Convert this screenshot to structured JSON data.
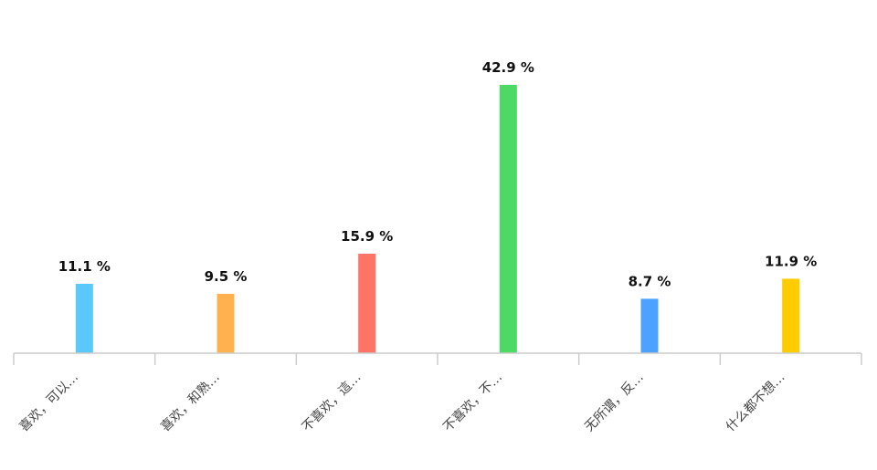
{
  "chart_data": {
    "type": "bar",
    "categories": [
      "喜欢，可以…",
      "喜欢，和熟…",
      "不喜欢，這…",
      "不喜欢，不…",
      "无所谓，反…",
      "什么都不想…"
    ],
    "values": [
      11.1,
      9.5,
      15.9,
      42.9,
      8.7,
      11.9
    ],
    "value_labels": [
      "11.1 %",
      "9.5 %",
      "15.9 %",
      "42.9 %",
      "8.7 %",
      "11.9 %"
    ],
    "colors": [
      "#5ac8fa",
      "#ffb14f",
      "#ff7466",
      "#4cd964",
      "#4da1ff",
      "#ffcc00"
    ],
    "title": "",
    "xlabel": "",
    "ylabel": "",
    "ylim": [
      0,
      42.9
    ],
    "grid": false,
    "legend": "none"
  }
}
